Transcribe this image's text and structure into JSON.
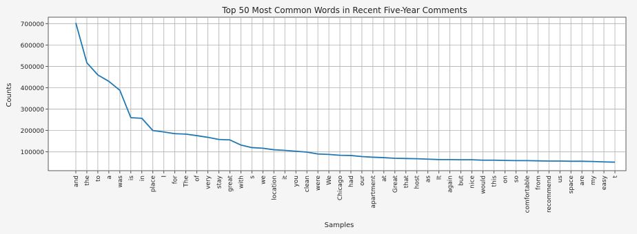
{
  "chart_data": {
    "type": "line",
    "title": "Top 50 Most Common Words in Recent Five-Year Comments",
    "xlabel": "Samples",
    "ylabel": "Counts",
    "categories": [
      "and",
      "the",
      "to",
      "a",
      "was",
      "is",
      "in",
      "place",
      "I",
      "for",
      "The",
      "of",
      "very",
      "stay",
      "great",
      "with",
      "s",
      "we",
      "location",
      "it",
      "you",
      "clean",
      "were",
      "We",
      "Chicago",
      "had",
      "our",
      "apartment",
      "at",
      "Great",
      "that",
      "host",
      "as",
      "It",
      "again",
      "but",
      "nice",
      "would",
      "this",
      "on",
      "so",
      "comfortable",
      "from",
      "recommend",
      "us",
      "space",
      "are",
      "my",
      "easy",
      "t"
    ],
    "values": [
      703000,
      517000,
      460000,
      430000,
      388000,
      260000,
      257000,
      200000,
      193000,
      185000,
      183000,
      176000,
      168000,
      158000,
      156000,
      132000,
      120000,
      117000,
      110000,
      107000,
      103000,
      99000,
      90000,
      88000,
      84000,
      83000,
      78000,
      75000,
      73000,
      70000,
      69000,
      68000,
      66000,
      64000,
      64000,
      63000,
      63000,
      61000,
      61000,
      60000,
      59000,
      59000,
      58000,
      57000,
      57000,
      56000,
      56000,
      55000,
      53000,
      52000
    ],
    "yticks": [
      100000,
      200000,
      300000,
      400000,
      500000,
      600000,
      700000
    ],
    "ylim": [
      12000,
      730000
    ],
    "grid": true,
    "line_color": "#1f77b4"
  }
}
